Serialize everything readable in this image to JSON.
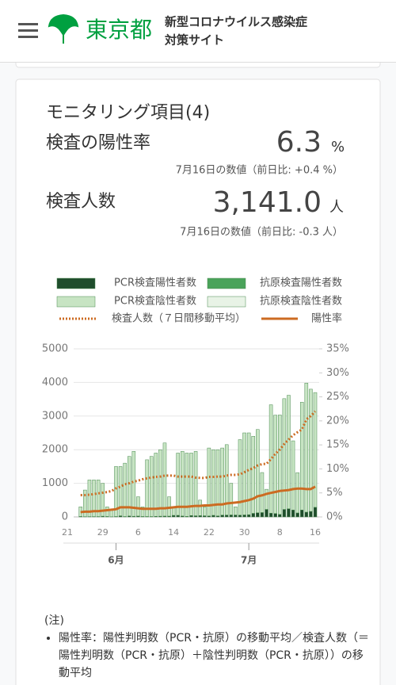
{
  "header": {
    "logo_text": "東京都",
    "site_title_line1": "新型コロナウイルス感染症",
    "site_title_line2": "対策サイト"
  },
  "card": {
    "title": "モニタリング項目(4)",
    "metric1": {
      "label": "検査の陽性率",
      "value": "6.3",
      "unit": "%",
      "note": "7月16日の数値（前日比: +0.4 %）"
    },
    "metric2": {
      "label": "検査人数",
      "value": "3,141.0",
      "unit": "人",
      "note": "7月16日の数値（前日比: -0.3 人）"
    }
  },
  "chart_data": {
    "type": "bar",
    "categories": [
      "21",
      null,
      null,
      null,
      null,
      null,
      null,
      null,
      "29",
      null,
      null,
      null,
      null,
      null,
      null,
      null,
      "6",
      null,
      null,
      null,
      null,
      null,
      null,
      null,
      "14",
      null,
      null,
      null,
      null,
      null,
      null,
      null,
      "22",
      null,
      null,
      null,
      null,
      null,
      null,
      null,
      "30",
      null,
      null,
      null,
      null,
      null,
      null,
      null,
      "8",
      null,
      null,
      null,
      null,
      null,
      null,
      null,
      "16"
    ],
    "months": [
      {
        "label": "6月",
        "category_index": 11
      },
      {
        "label": "7月",
        "category_index": 41
      }
    ],
    "ylim": [
      0,
      5000
    ],
    "yticks": [
      0,
      1000,
      2000,
      3000,
      4000,
      5000
    ],
    "y2lim": [
      0,
      35
    ],
    "y2ticks": [
      {
        "value": 0,
        "label": "0%"
      },
      {
        "value": 5,
        "label": "5%"
      },
      {
        "value": 10,
        "label": "10%"
      },
      {
        "value": 15,
        "label": "15%"
      },
      {
        "value": 20,
        "label": "20%"
      },
      {
        "value": 25,
        "label": "25%"
      },
      {
        "value": 30,
        "label": "30%"
      },
      {
        "value": 35,
        "label": "35%"
      }
    ],
    "grid": true,
    "series": [
      {
        "name": "PCR検査陽性者数",
        "type": "bar",
        "color": "#1f4d2c",
        "values": [
          null,
          null,
          null,
          14,
          8,
          10,
          10,
          11,
          22,
          14,
          5,
          13,
          34,
          12,
          28,
          20,
          26,
          14,
          13,
          12,
          18,
          22,
          25,
          24,
          47,
          48,
          27,
          16,
          41,
          35,
          39,
          35,
          29,
          48,
          31,
          55,
          57,
          60,
          58,
          54,
          60,
          67,
          107,
          124,
          131,
          224,
          111,
          102,
          75,
          224,
          243,
          206,
          119,
          206,
          143,
          165,
          286
        ]
      },
      {
        "name": "抗原検査陽性者数",
        "type": "bar",
        "color": "#4aa35a",
        "values": [
          null,
          null,
          null,
          0,
          0,
          0,
          0,
          0,
          0,
          0,
          0,
          0,
          0,
          0,
          0,
          0,
          0,
          0,
          0,
          0,
          0,
          0,
          0,
          0,
          0,
          0,
          0,
          0,
          0,
          0,
          0,
          0,
          0,
          0,
          0,
          0,
          0,
          0,
          0,
          0,
          0,
          0,
          0,
          0,
          0,
          0,
          0,
          0,
          0,
          0,
          0,
          0,
          0,
          0,
          0,
          0,
          0
        ]
      },
      {
        "name": "PCR検査陰性者数",
        "type": "bar",
        "color": "#c7e4c3",
        "values": [
          null,
          null,
          null,
          286,
          792,
          1090,
          1090,
          1089,
          978,
          286,
          195,
          1487,
          1466,
          1588,
          1772,
          1930,
          574,
          286,
          1687,
          1788,
          1882,
          1978,
          2175,
          576,
          253,
          1852,
          1923,
          1884,
          1859,
          1915,
          461,
          265,
          2021,
          1952,
          1969,
          1995,
          2093,
          940,
          242,
          2246,
          2440,
          2433,
          2293,
          2476,
          1189,
          598,
          3225,
          2926,
          2957,
          3294,
          3376,
          2057,
          1198,
          3206,
          3838,
          3635,
          3414
        ]
      },
      {
        "name": "抗原検査陰性者数",
        "type": "bar",
        "color": "#e8f3e6",
        "values": [
          null,
          null,
          null,
          0,
          0,
          0,
          0,
          0,
          0,
          0,
          0,
          0,
          0,
          0,
          0,
          0,
          0,
          0,
          0,
          0,
          0,
          0,
          0,
          0,
          0,
          0,
          0,
          0,
          0,
          0,
          0,
          0,
          0,
          0,
          0,
          0,
          0,
          0,
          0,
          0,
          0,
          0,
          0,
          0,
          0,
          0,
          0,
          0,
          0,
          0,
          0,
          0,
          0,
          0,
          0,
          0,
          0
        ]
      },
      {
        "name": "検査人数（７日間移動平均）",
        "type": "line",
        "dashed": true,
        "color": "#cc6b22",
        "values": [
          null,
          null,
          null,
          650,
          650,
          660,
          680,
          700,
          720,
          740,
          770,
          850,
          900,
          970,
          1000,
          1050,
          1080,
          1120,
          1150,
          1170,
          1190,
          1200,
          1230,
          1230,
          1230,
          1200,
          1200,
          1200,
          1200,
          1170,
          1160,
          1160,
          1190,
          1190,
          1200,
          1200,
          1230,
          1250,
          1250,
          1270,
          1330,
          1400,
          1450,
          1530,
          1570,
          1580,
          1720,
          1880,
          2000,
          2170,
          2300,
          2430,
          2520,
          2600,
          2900,
          3000,
          3141
        ]
      },
      {
        "name": "陽性率",
        "type": "line",
        "dashed": false,
        "axis": "y2",
        "color": "#cc6b22",
        "values": [
          null,
          null,
          null,
          1.0,
          1.1,
          1.1,
          1.2,
          1.2,
          1.3,
          1.4,
          1.5,
          1.6,
          2.0,
          2.0,
          2.0,
          1.9,
          1.8,
          1.7,
          1.7,
          1.7,
          1.7,
          1.8,
          1.8,
          1.9,
          2.0,
          2.1,
          2.1,
          2.1,
          2.2,
          2.3,
          2.3,
          2.4,
          2.4,
          2.5,
          2.6,
          2.6,
          2.8,
          2.9,
          3.0,
          3.1,
          3.3,
          3.5,
          3.8,
          4.3,
          4.5,
          4.8,
          5.0,
          5.2,
          5.4,
          5.5,
          5.6,
          5.8,
          5.9,
          5.9,
          5.8,
          5.8,
          6.3
        ]
      }
    ]
  },
  "notes": {
    "heading": "(注)",
    "items": [
      "陽性率：陽性判明数（PCR・抗原）の移動平均／検査人数（＝陽性判明数（PCR・抗原）＋陰性判明数（PCR・抗原））の移動平均"
    ]
  }
}
